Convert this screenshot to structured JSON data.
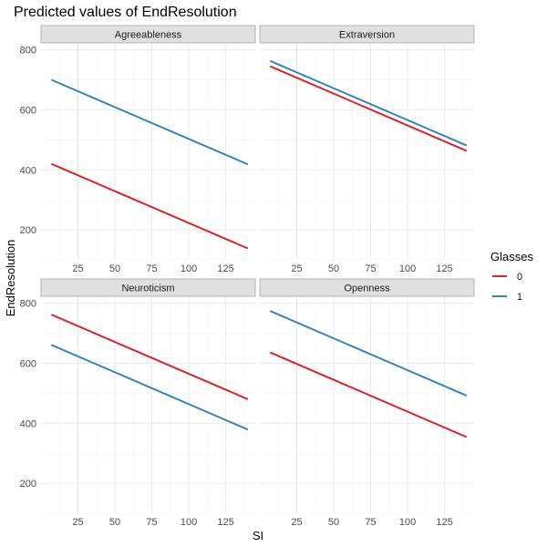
{
  "chart_data": {
    "type": "line",
    "title": "Predicted values of EndResolution",
    "xlabel": "SI",
    "ylabel": "EndResolution",
    "xlim": [
      0,
      145
    ],
    "ylim": [
      100,
      820
    ],
    "x_ticks": [
      25,
      50,
      75,
      100,
      125
    ],
    "y_ticks": [
      200,
      400,
      600,
      800
    ],
    "grid": true,
    "legend": {
      "title": "Glasses",
      "position": "right",
      "entries": [
        {
          "name": "0",
          "color": "#D7262B"
        },
        {
          "name": "1",
          "color": "#3A84B8"
        }
      ]
    },
    "facets": [
      {
        "label": "Agreeableness",
        "series": [
          {
            "name": "0",
            "x": [
              7,
              140
            ],
            "values": [
              420,
              138
            ]
          },
          {
            "name": "1",
            "x": [
              7,
              140
            ],
            "values": [
              700,
              418
            ]
          }
        ]
      },
      {
        "label": "Extraversion",
        "series": [
          {
            "name": "0",
            "x": [
              7,
              140
            ],
            "values": [
              745,
              463
            ]
          },
          {
            "name": "1",
            "x": [
              7,
              140
            ],
            "values": [
              763,
              481
            ]
          }
        ]
      },
      {
        "label": "Neuroticism",
        "series": [
          {
            "name": "0",
            "x": [
              7,
              140
            ],
            "values": [
              762,
              480
            ]
          },
          {
            "name": "1",
            "x": [
              7,
              140
            ],
            "values": [
              661,
              379
            ]
          }
        ]
      },
      {
        "label": "Openness",
        "series": [
          {
            "name": "0",
            "x": [
              7,
              140
            ],
            "values": [
              636,
              354
            ]
          },
          {
            "name": "1",
            "x": [
              7,
              140
            ],
            "values": [
              774,
              492
            ]
          }
        ]
      }
    ]
  }
}
